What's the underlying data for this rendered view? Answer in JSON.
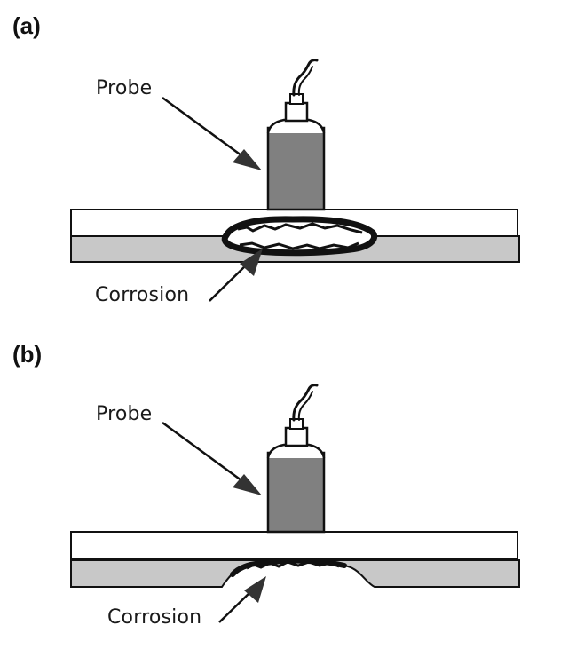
{
  "panels": [
    {
      "id": "a",
      "label": "(a)",
      "probe_label": "Probe",
      "corrosion_label": "Corrosion",
      "corrosion_type": "internal void"
    },
    {
      "id": "b",
      "label": "(b)",
      "probe_label": "Probe",
      "corrosion_label": "Corrosion",
      "corrosion_type": "back-wall pitting"
    }
  ],
  "colors": {
    "probe": "#808080",
    "back_layer": "#c8c8c8",
    "front_layer": "#ffffff",
    "outline": "#111111",
    "corrosion": "#111111"
  }
}
